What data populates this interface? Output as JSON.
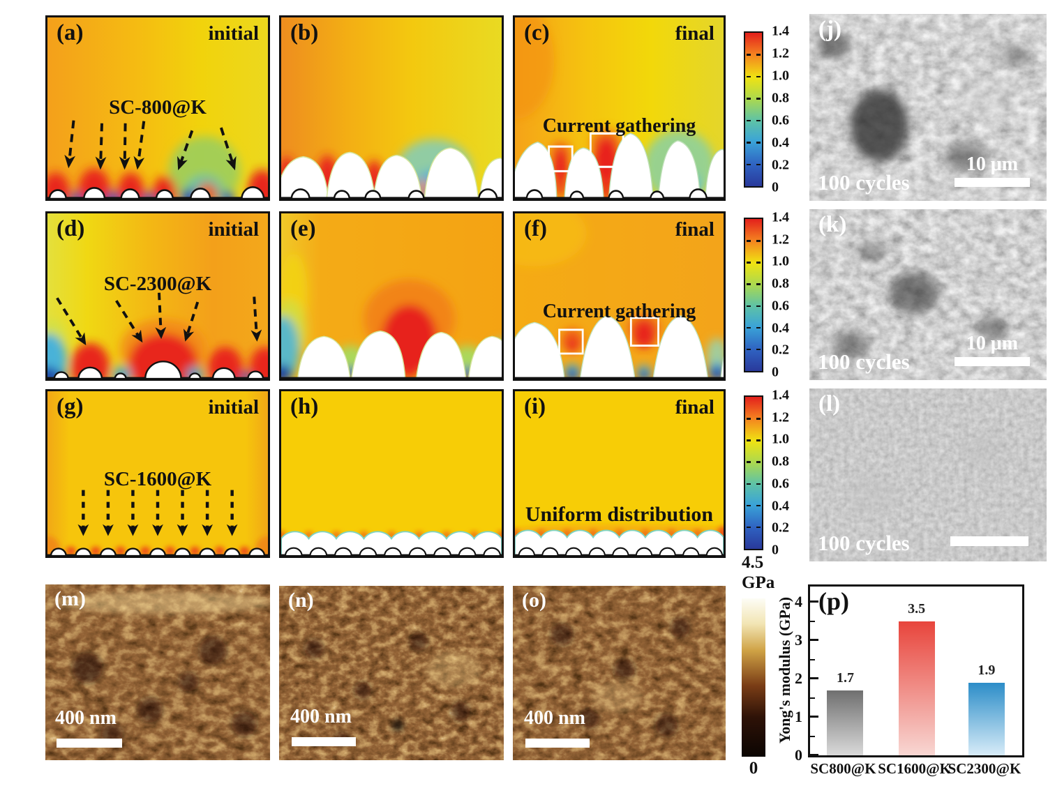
{
  "panels": {
    "a": {
      "label": "(a)",
      "tag": "initial",
      "annotation": "SC-800@K"
    },
    "b": {
      "label": "(b)"
    },
    "c": {
      "label": "(c)",
      "tag": "final",
      "annotation": "Current gathering"
    },
    "d": {
      "label": "(d)",
      "tag": "initial",
      "annotation": "SC-2300@K"
    },
    "e": {
      "label": "(e)"
    },
    "f": {
      "label": "(f)",
      "tag": "final",
      "annotation": "Current gathering"
    },
    "g": {
      "label": "(g)",
      "tag": "initial",
      "annotation": "SC-1600@K"
    },
    "h": {
      "label": "(h)"
    },
    "i": {
      "label": "(i)",
      "tag": "final",
      "annotation": "Uniform distribution"
    },
    "j": {
      "label": "(j)",
      "cycles_label": "100 cycles",
      "scalebar_label": "10 μm"
    },
    "k": {
      "label": "(k)",
      "cycles_label": "100 cycles",
      "scalebar_label": "10 μm"
    },
    "l": {
      "label": "(l)",
      "cycles_label": "100 cycles"
    },
    "m": {
      "label": "(m)",
      "scalebar_label": "400 nm"
    },
    "n": {
      "label": "(n)",
      "scalebar_label": "400 nm"
    },
    "o": {
      "label": "(o)",
      "scalebar_label": "400 nm"
    },
    "p": {
      "label": "(p)"
    }
  },
  "colorbar": {
    "ticks": [
      "1.4",
      "1.2",
      "1.0",
      "0.8",
      "0.6",
      "0.4",
      "0.2",
      "0"
    ]
  },
  "gpa_colorbar": {
    "max_value": "4.5",
    "unit": "GPa",
    "min_value": "0"
  },
  "chart_data": {
    "type": "bar",
    "categories": [
      "SC800@K",
      "SC1600@K",
      "SC2300@K"
    ],
    "values": [
      1.7,
      3.5,
      1.9
    ],
    "value_labels": [
      "1.7",
      "3.5",
      "1.9"
    ],
    "ylabel": "Yong's modulus (GPa)",
    "ylim": [
      0,
      4.4
    ],
    "yticks": [
      0,
      1,
      2,
      3,
      4
    ],
    "bar_gradients": [
      [
        "#6f6f6f",
        "#dadada"
      ],
      [
        "#e8453c",
        "#f8d7d3"
      ],
      [
        "#2c8dc8",
        "#d8ecf8"
      ]
    ],
    "grid": false,
    "legend_position": "none"
  }
}
